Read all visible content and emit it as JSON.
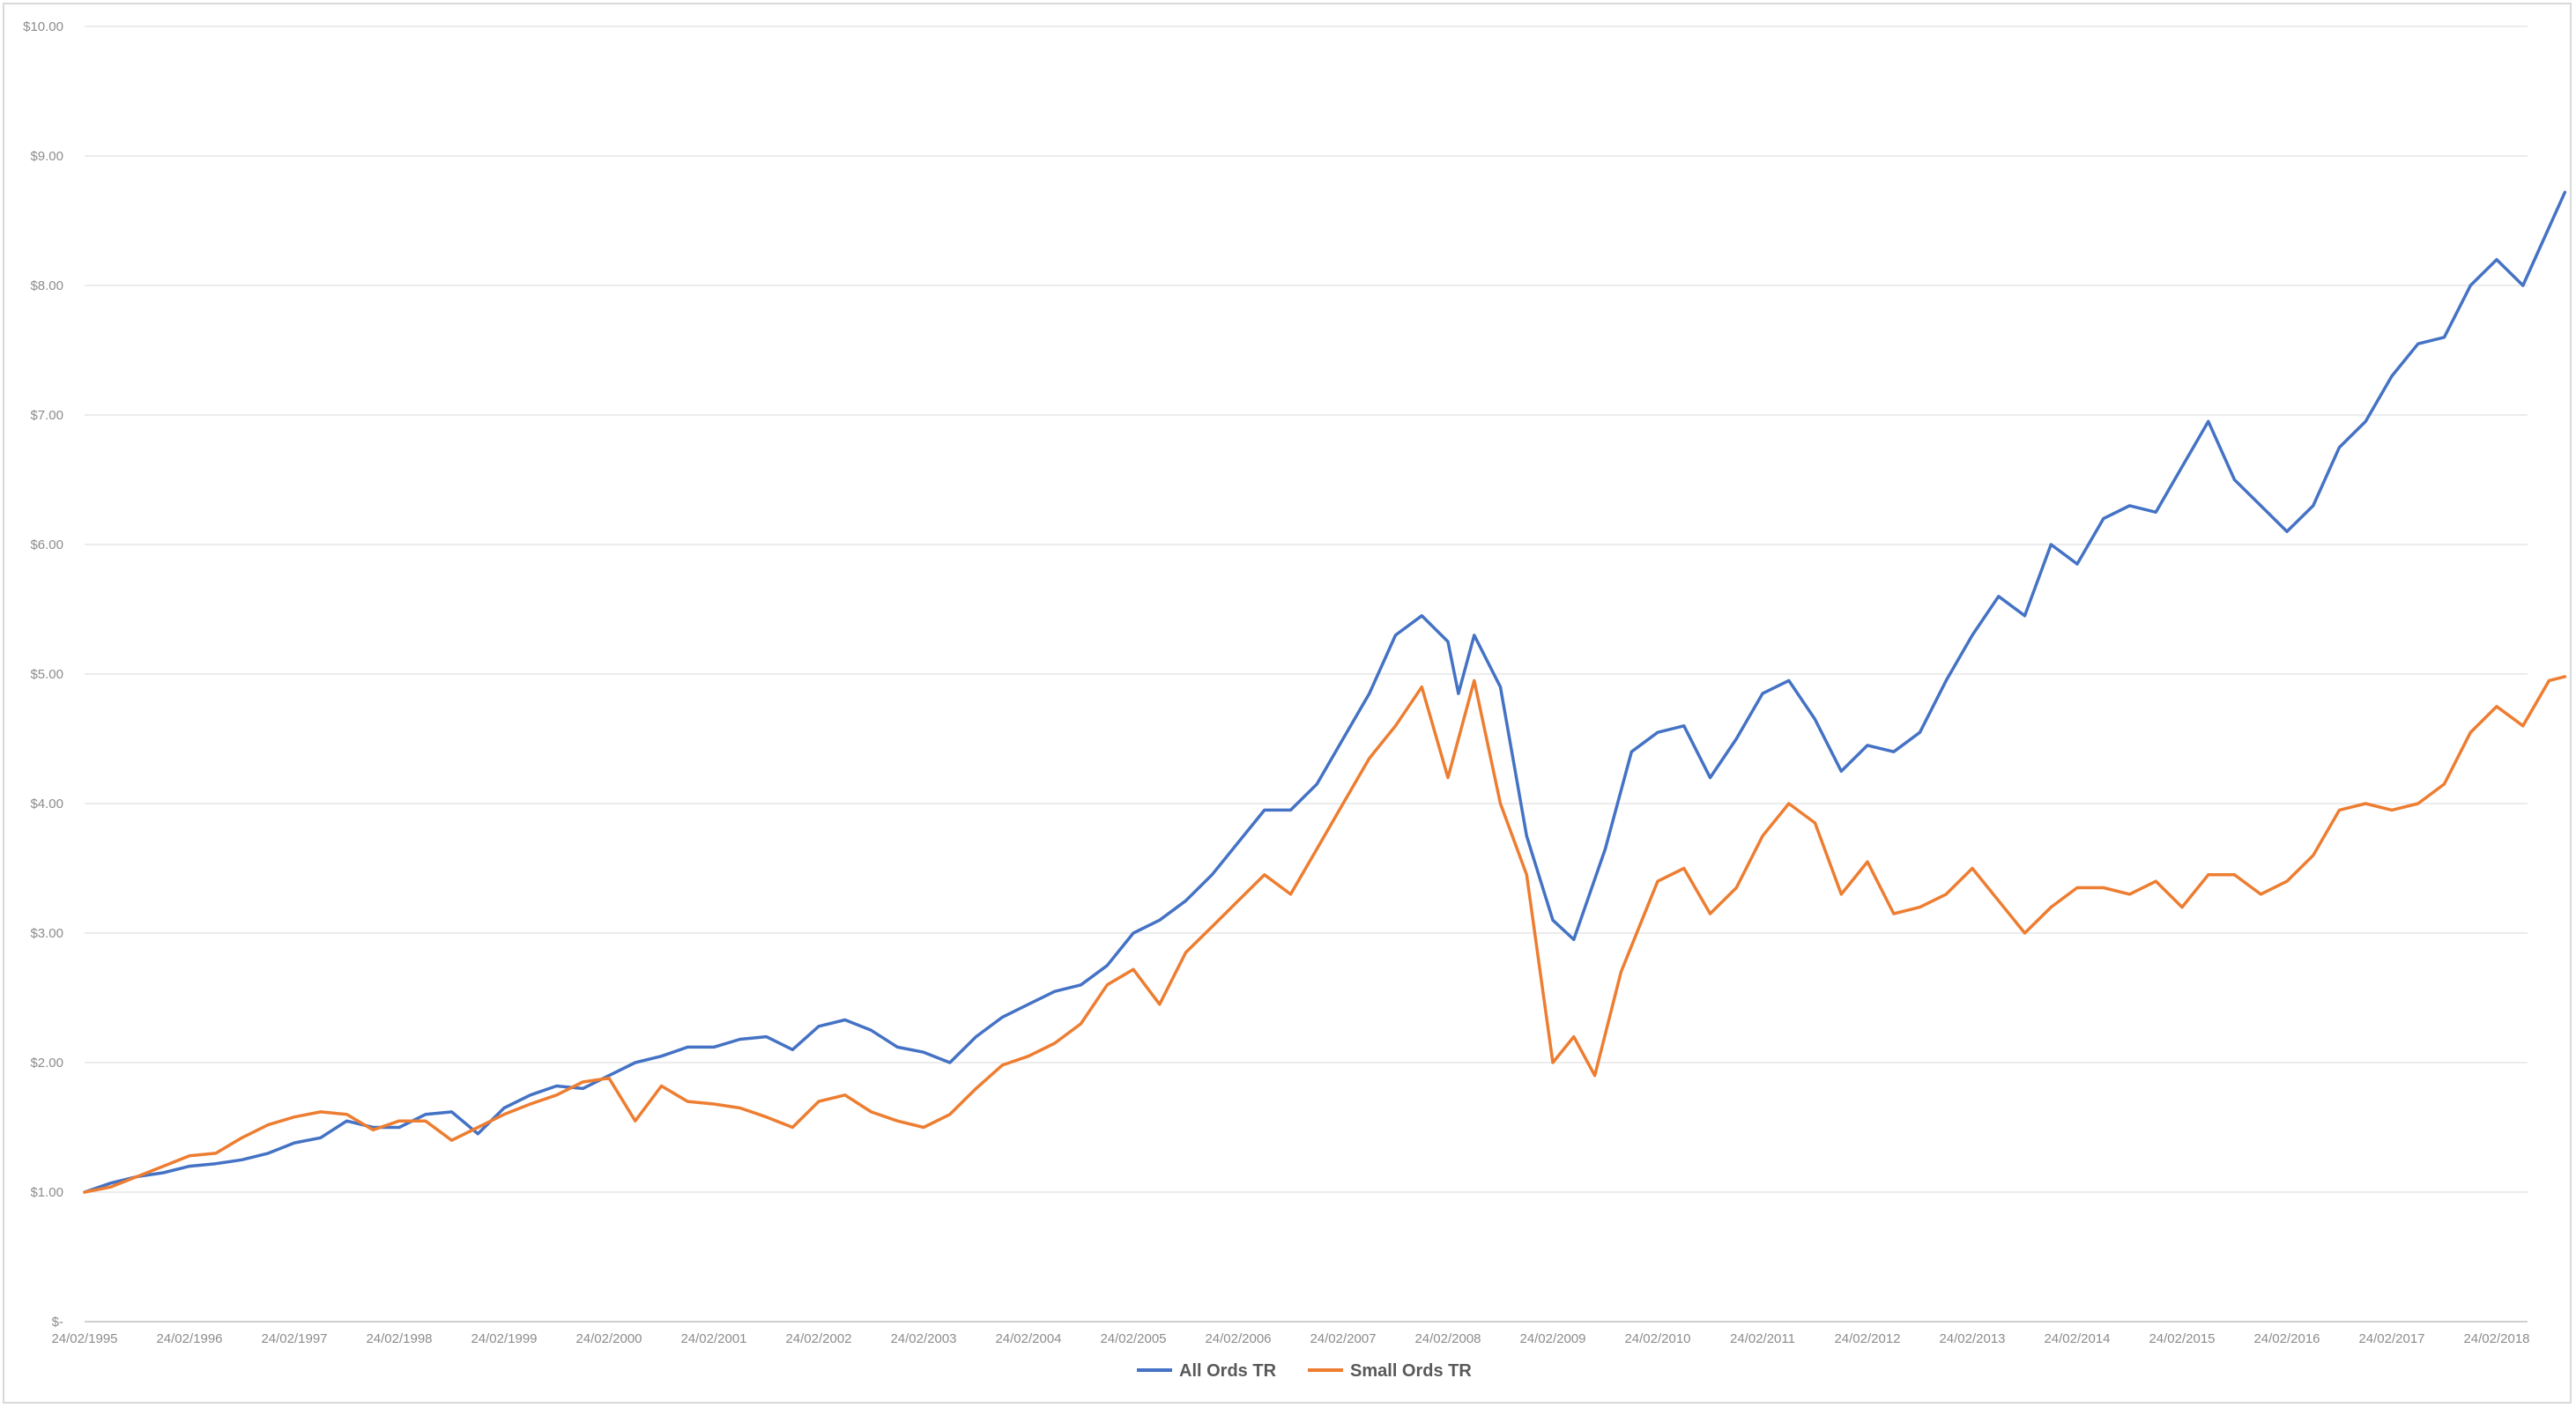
{
  "chart_data": {
    "type": "line",
    "title": "",
    "xlabel": "",
    "ylabel": "",
    "ylim": [
      0,
      10
    ],
    "y_ticks": [
      "$-",
      "$1.00",
      "$2.00",
      "$3.00",
      "$4.00",
      "$5.00",
      "$6.00",
      "$7.00",
      "$8.00",
      "$9.00",
      "$10.00"
    ],
    "x_ticks": [
      "24/02/1995",
      "24/02/1996",
      "24/02/1997",
      "24/02/1998",
      "24/02/1999",
      "24/02/2000",
      "24/02/2001",
      "24/02/2002",
      "24/02/2003",
      "24/02/2004",
      "24/02/2005",
      "24/02/2006",
      "24/02/2007",
      "24/02/2008",
      "24/02/2009",
      "24/02/2010",
      "24/02/2011",
      "24/02/2012",
      "24/02/2013",
      "24/02/2014",
      "24/02/2015",
      "24/02/2016",
      "24/02/2017",
      "24/02/2018"
    ],
    "grid": "horizontal",
    "legend_position": "bottom",
    "series": [
      {
        "name": "All Ords TR",
        "color": "#4472c4",
        "points": [
          [
            1995.0,
            1.0
          ],
          [
            1995.25,
            1.07
          ],
          [
            1995.5,
            1.12
          ],
          [
            1995.75,
            1.15
          ],
          [
            1996.0,
            1.2
          ],
          [
            1996.25,
            1.22
          ],
          [
            1996.5,
            1.25
          ],
          [
            1996.75,
            1.3
          ],
          [
            1997.0,
            1.38
          ],
          [
            1997.25,
            1.42
          ],
          [
            1997.5,
            1.55
          ],
          [
            1997.75,
            1.5
          ],
          [
            1998.0,
            1.5
          ],
          [
            1998.25,
            1.6
          ],
          [
            1998.5,
            1.62
          ],
          [
            1998.75,
            1.45
          ],
          [
            1999.0,
            1.65
          ],
          [
            1999.25,
            1.75
          ],
          [
            1999.5,
            1.82
          ],
          [
            1999.75,
            1.8
          ],
          [
            2000.0,
            1.9
          ],
          [
            2000.25,
            2.0
          ],
          [
            2000.5,
            2.05
          ],
          [
            2000.75,
            2.12
          ],
          [
            2001.0,
            2.12
          ],
          [
            2001.25,
            2.18
          ],
          [
            2001.5,
            2.2
          ],
          [
            2001.75,
            2.1
          ],
          [
            2002.0,
            2.28
          ],
          [
            2002.25,
            2.33
          ],
          [
            2002.5,
            2.25
          ],
          [
            2002.75,
            2.12
          ],
          [
            2003.0,
            2.08
          ],
          [
            2003.25,
            2.0
          ],
          [
            2003.5,
            2.2
          ],
          [
            2003.75,
            2.35
          ],
          [
            2004.0,
            2.45
          ],
          [
            2004.25,
            2.55
          ],
          [
            2004.5,
            2.6
          ],
          [
            2004.75,
            2.75
          ],
          [
            2005.0,
            3.0
          ],
          [
            2005.25,
            3.1
          ],
          [
            2005.5,
            3.25
          ],
          [
            2005.75,
            3.45
          ],
          [
            2006.0,
            3.7
          ],
          [
            2006.25,
            3.95
          ],
          [
            2006.5,
            3.95
          ],
          [
            2006.75,
            4.15
          ],
          [
            2007.0,
            4.5
          ],
          [
            2007.25,
            4.85
          ],
          [
            2007.5,
            5.3
          ],
          [
            2007.75,
            5.45
          ],
          [
            2008.0,
            5.25
          ],
          [
            2008.1,
            4.85
          ],
          [
            2008.25,
            5.3
          ],
          [
            2008.5,
            4.9
          ],
          [
            2008.75,
            3.75
          ],
          [
            2009.0,
            3.1
          ],
          [
            2009.2,
            2.95
          ],
          [
            2009.5,
            3.65
          ],
          [
            2009.75,
            4.4
          ],
          [
            2010.0,
            4.55
          ],
          [
            2010.25,
            4.6
          ],
          [
            2010.5,
            4.2
          ],
          [
            2010.75,
            4.5
          ],
          [
            2011.0,
            4.85
          ],
          [
            2011.25,
            4.95
          ],
          [
            2011.5,
            4.65
          ],
          [
            2011.75,
            4.25
          ],
          [
            2012.0,
            4.45
          ],
          [
            2012.25,
            4.4
          ],
          [
            2012.5,
            4.55
          ],
          [
            2012.75,
            4.95
          ],
          [
            2013.0,
            5.3
          ],
          [
            2013.25,
            5.6
          ],
          [
            2013.5,
            5.45
          ],
          [
            2013.75,
            6.0
          ],
          [
            2014.0,
            5.85
          ],
          [
            2014.25,
            6.2
          ],
          [
            2014.5,
            6.3
          ],
          [
            2014.75,
            6.25
          ],
          [
            2015.0,
            6.6
          ],
          [
            2015.25,
            6.95
          ],
          [
            2015.5,
            6.5
          ],
          [
            2015.75,
            6.3
          ],
          [
            2016.0,
            6.1
          ],
          [
            2016.25,
            6.3
          ],
          [
            2016.5,
            6.75
          ],
          [
            2016.75,
            6.95
          ],
          [
            2017.0,
            7.3
          ],
          [
            2017.25,
            7.55
          ],
          [
            2017.5,
            7.6
          ],
          [
            2017.75,
            8.0
          ],
          [
            2018.0,
            8.2
          ],
          [
            2018.25,
            8.0
          ],
          [
            2018.5,
            8.45
          ],
          [
            2018.65,
            8.72
          ]
        ]
      },
      {
        "name": "Small Ords TR",
        "color": "#ed7d31",
        "points": [
          [
            1995.0,
            1.0
          ],
          [
            1995.25,
            1.04
          ],
          [
            1995.5,
            1.12
          ],
          [
            1995.75,
            1.2
          ],
          [
            1996.0,
            1.28
          ],
          [
            1996.25,
            1.3
          ],
          [
            1996.5,
            1.42
          ],
          [
            1996.75,
            1.52
          ],
          [
            1997.0,
            1.58
          ],
          [
            1997.25,
            1.62
          ],
          [
            1997.5,
            1.6
          ],
          [
            1997.75,
            1.48
          ],
          [
            1998.0,
            1.55
          ],
          [
            1998.25,
            1.55
          ],
          [
            1998.5,
            1.4
          ],
          [
            1998.75,
            1.5
          ],
          [
            1999.0,
            1.6
          ],
          [
            1999.25,
            1.68
          ],
          [
            1999.5,
            1.75
          ],
          [
            1999.75,
            1.85
          ],
          [
            2000.0,
            1.88
          ],
          [
            2000.25,
            1.55
          ],
          [
            2000.5,
            1.82
          ],
          [
            2000.75,
            1.7
          ],
          [
            2001.0,
            1.68
          ],
          [
            2001.25,
            1.65
          ],
          [
            2001.5,
            1.58
          ],
          [
            2001.75,
            1.5
          ],
          [
            2002.0,
            1.7
          ],
          [
            2002.25,
            1.75
          ],
          [
            2002.5,
            1.62
          ],
          [
            2002.75,
            1.55
          ],
          [
            2003.0,
            1.5
          ],
          [
            2003.25,
            1.6
          ],
          [
            2003.5,
            1.8
          ],
          [
            2003.75,
            1.98
          ],
          [
            2004.0,
            2.05
          ],
          [
            2004.25,
            2.15
          ],
          [
            2004.5,
            2.3
          ],
          [
            2004.75,
            2.6
          ],
          [
            2005.0,
            2.72
          ],
          [
            2005.25,
            2.45
          ],
          [
            2005.5,
            2.85
          ],
          [
            2005.75,
            3.05
          ],
          [
            2006.0,
            3.25
          ],
          [
            2006.25,
            3.45
          ],
          [
            2006.5,
            3.3
          ],
          [
            2006.75,
            3.65
          ],
          [
            2007.0,
            4.0
          ],
          [
            2007.25,
            4.35
          ],
          [
            2007.5,
            4.6
          ],
          [
            2007.75,
            4.9
          ],
          [
            2008.0,
            4.2
          ],
          [
            2008.25,
            4.95
          ],
          [
            2008.5,
            4.0
          ],
          [
            2008.75,
            3.45
          ],
          [
            2009.0,
            2.0
          ],
          [
            2009.2,
            2.2
          ],
          [
            2009.4,
            1.9
          ],
          [
            2009.65,
            2.7
          ],
          [
            2009.85,
            3.1
          ],
          [
            2010.0,
            3.4
          ],
          [
            2010.25,
            3.5
          ],
          [
            2010.5,
            3.15
          ],
          [
            2010.75,
            3.35
          ],
          [
            2011.0,
            3.75
          ],
          [
            2011.25,
            4.0
          ],
          [
            2011.5,
            3.85
          ],
          [
            2011.75,
            3.3
          ],
          [
            2012.0,
            3.55
          ],
          [
            2012.25,
            3.15
          ],
          [
            2012.5,
            3.2
          ],
          [
            2012.75,
            3.3
          ],
          [
            2013.0,
            3.5
          ],
          [
            2013.25,
            3.25
          ],
          [
            2013.5,
            3.0
          ],
          [
            2013.75,
            3.2
          ],
          [
            2014.0,
            3.35
          ],
          [
            2014.25,
            3.35
          ],
          [
            2014.5,
            3.3
          ],
          [
            2014.75,
            3.4
          ],
          [
            2015.0,
            3.2
          ],
          [
            2015.25,
            3.45
          ],
          [
            2015.5,
            3.45
          ],
          [
            2015.75,
            3.3
          ],
          [
            2016.0,
            3.4
          ],
          [
            2016.25,
            3.6
          ],
          [
            2016.5,
            3.95
          ],
          [
            2016.75,
            4.0
          ],
          [
            2017.0,
            3.95
          ],
          [
            2017.25,
            4.0
          ],
          [
            2017.5,
            4.15
          ],
          [
            2017.75,
            4.55
          ],
          [
            2018.0,
            4.75
          ],
          [
            2018.25,
            4.6
          ],
          [
            2018.5,
            4.95
          ],
          [
            2018.65,
            4.98
          ]
        ]
      }
    ]
  }
}
